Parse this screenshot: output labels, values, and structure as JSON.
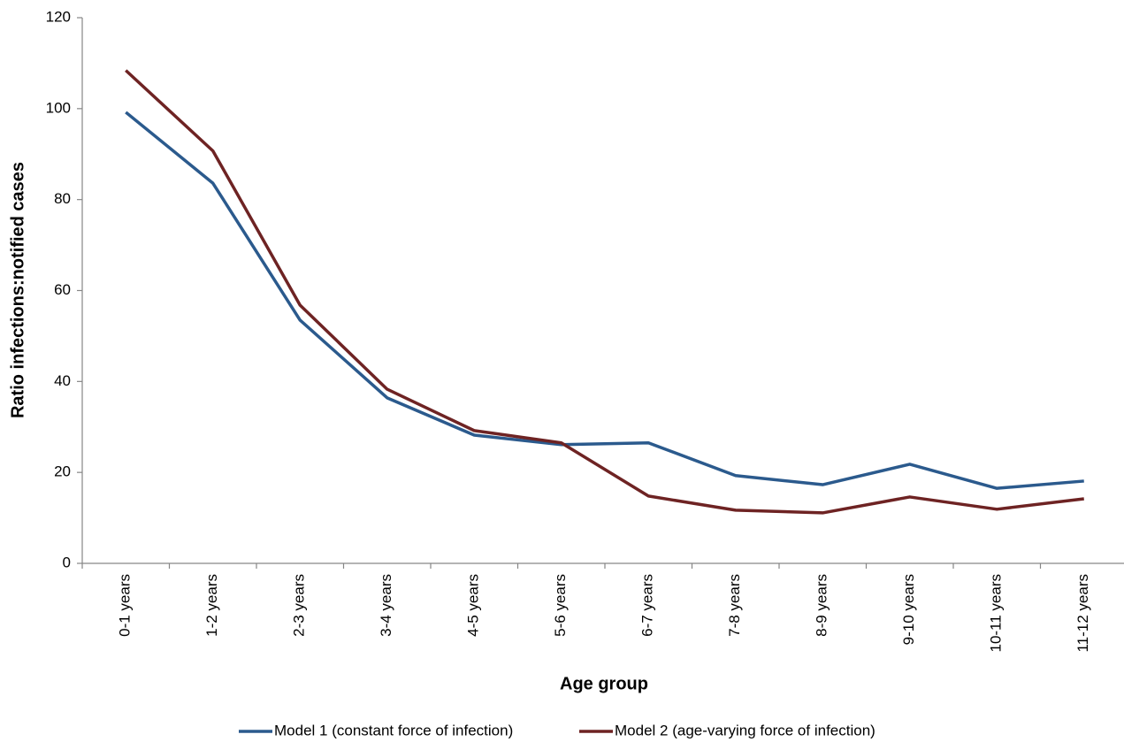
{
  "chart_data": {
    "type": "line",
    "x_label": "Age group",
    "y_label": "Ratio infections:notified cases",
    "categories": [
      "0-1 years",
      "1-2 years",
      "2-3 years",
      "3-4 years",
      "4-5 years",
      "5-6 years",
      "6-7 years",
      "7-8 years",
      "8-9 years",
      "9-10 years",
      "10-11 years",
      "11-12 years"
    ],
    "series": [
      {
        "name": "Model 1 (constant force of infection)",
        "color": "#2b5a8d",
        "values": [
          99.2,
          83.6,
          53.5,
          36.4,
          28.2,
          26.1,
          26.5,
          19.3,
          17.3,
          21.8,
          16.5,
          18.1
        ]
      },
      {
        "name": "Model 2 (age-varying force of infection)",
        "color": "#6e2323",
        "values": [
          108.4,
          90.7,
          56.8,
          38.3,
          29.2,
          26.5,
          14.8,
          11.7,
          11.1,
          14.6,
          11.9,
          14.2
        ]
      }
    ],
    "ylim": [
      0,
      120
    ],
    "yticks": [
      0,
      20,
      40,
      60,
      80,
      100,
      120
    ],
    "grid": false,
    "legend": "bottom"
  }
}
